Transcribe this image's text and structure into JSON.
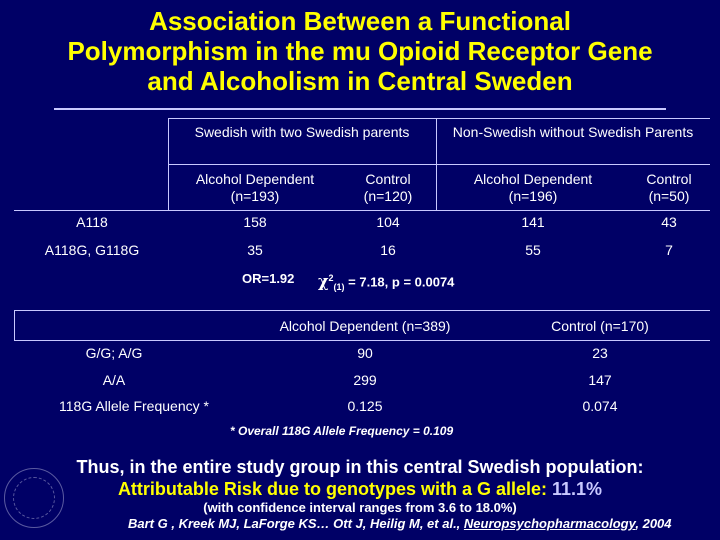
{
  "title": {
    "line1": "Association Between a Functional",
    "line2": "Polymorphism in the mu Opioid Receptor Gene",
    "line3": "and Alcoholism in Central Sweden"
  },
  "table1": {
    "group1": "Swedish with two Swedish parents",
    "group2": "Non-Swedish without Swedish Parents",
    "sub": [
      {
        "line1": "Alcohol Dependent",
        "line2": "(n=193)"
      },
      {
        "line1": "Control",
        "line2": "(n=120)"
      },
      {
        "line1": "Alcohol Dependent",
        "line2": "(n=196)"
      },
      {
        "line1": "Control",
        "line2": "(n=50)"
      }
    ],
    "rows": [
      {
        "label": "A118",
        "values": [
          "158",
          "104",
          "141",
          "43"
        ]
      },
      {
        "label": "A118G, G118G",
        "values": [
          "35",
          "16",
          "55",
          "7"
        ]
      }
    ],
    "stat_or": "OR=1.92",
    "stat_chi": "χ",
    "stat_chi_sup": "2",
    "stat_chi_sub": "(1)",
    "stat_rest": " = 7.18, p = 0.0074"
  },
  "table2": {
    "headers": [
      "Alcohol Dependent (n=389)",
      "Control (n=170)"
    ],
    "rows": [
      {
        "label": "G/G; A/G",
        "values": [
          "90",
          "23"
        ]
      },
      {
        "label": "A/A",
        "values": [
          "299",
          "147"
        ]
      },
      {
        "label": "118G Allele Frequency *",
        "values": [
          "0.125",
          "0.074"
        ]
      }
    ],
    "footnote": "* Overall 118G Allele Frequency = 0.109"
  },
  "conclusion": {
    "line1": "Thus, in the entire study group in this central Swedish population:",
    "line2_prefix": "Attributable Risk due to genotypes with a G allele: ",
    "line2_value": "11.1%",
    "line3": "(with confidence interval ranges from 3.6 to 18.0%)"
  },
  "citation": {
    "authors": "Bart G , Kreek MJ, LaForge KS… Ott J, Heilig M, et al., ",
    "journal": "Neuropsychopharmacology",
    "year": ", 2004"
  },
  "colors": {
    "background": "#000066",
    "title": "#ffff00",
    "text": "#ffffff"
  }
}
